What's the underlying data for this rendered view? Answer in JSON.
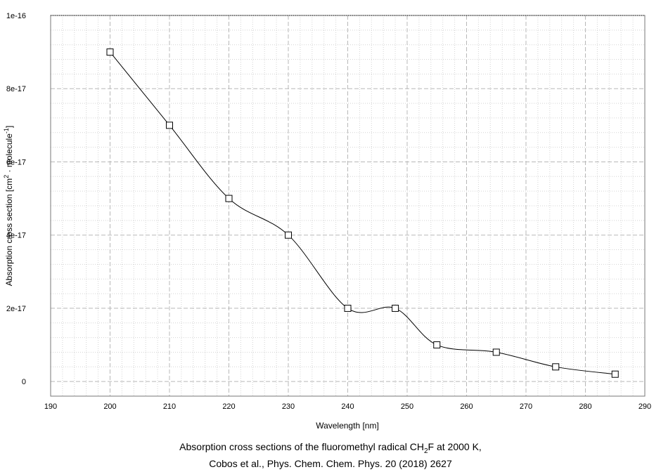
{
  "chart_data": {
    "type": "line",
    "xlabel": "Wavelength [nm]",
    "ylabel_parts": [
      "Absorption cross section [cm",
      "2",
      " · molecule",
      "-1",
      "]"
    ],
    "xlim": [
      190,
      290
    ],
    "ylim": [
      -4e-18,
      1e-16
    ],
    "x_ticks": [
      190,
      200,
      210,
      220,
      230,
      240,
      250,
      260,
      270,
      280,
      290
    ],
    "y_ticks": [
      0,
      2e-17,
      4e-17,
      6e-17,
      8e-17,
      1e-16
    ],
    "y_tick_labels": [
      "0",
      "2e-17",
      "4e-17",
      "6e-17",
      "8e-17",
      "1e-16"
    ],
    "grid": true,
    "marker": "square",
    "x": [
      200,
      210,
      220,
      230,
      240,
      248,
      255,
      265,
      275,
      285
    ],
    "y": [
      9e-17,
      7e-17,
      5e-17,
      4e-17,
      2e-17,
      2e-17,
      1e-17,
      8e-18,
      4e-18,
      2e-18
    ]
  },
  "caption": {
    "line1_before": "Absorption cross sections of the fluoromethyl radical CH",
    "line1_sub": "2",
    "line1_after": "F at 2000 K,",
    "line2": "Cobos et al., Phys. Chem. Chem. Phys. 20 (2018) 2627"
  }
}
